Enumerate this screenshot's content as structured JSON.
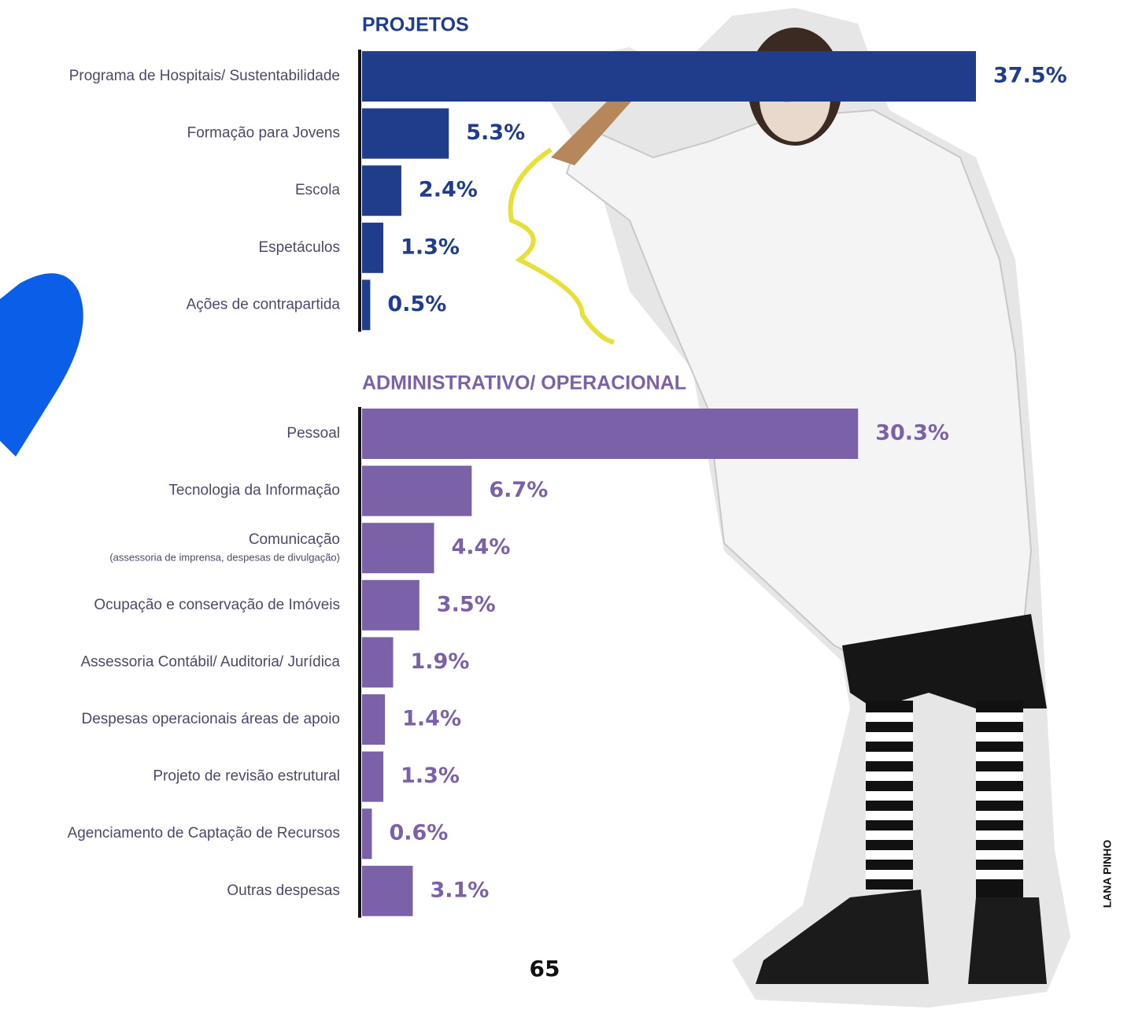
{
  "chart_data": [
    {
      "type": "bar",
      "orientation": "horizontal",
      "title": "PROJETOS",
      "color": "#1f3d8a",
      "categories": [
        "Programa de Hospitais/ Sustentabilidade",
        "Formação para Jovens",
        "Escola",
        "Espetáculos",
        "Ações de contrapartida"
      ],
      "category_details": [
        null,
        null,
        null,
        null,
        null
      ],
      "values": [
        37.5,
        5.3,
        2.4,
        1.3,
        0.5
      ],
      "value_labels": [
        "37.5%",
        "5.3%",
        "2.4%",
        "1.3%",
        "0.5%"
      ]
    },
    {
      "type": "bar",
      "orientation": "horizontal",
      "title": "ADMINISTRATIVO/ OPERACIONAL",
      "color": "#7b62a8",
      "categories": [
        "Pessoal",
        "Tecnologia da Informação",
        "Comunicação",
        "Ocupação e conservação de Imóveis",
        "Assessoria Contábil/ Auditoria/ Jurídica",
        "Despesas operacionais áreas de apoio",
        "Projeto de revisão estrutural",
        "Agenciamento de Captação de Recursos",
        "Outras despesas"
      ],
      "category_details": [
        null,
        null,
        "(assessoria de imprensa, despesas de divulgação)",
        null,
        null,
        null,
        null,
        null,
        null
      ],
      "values": [
        30.3,
        6.7,
        4.4,
        3.5,
        1.9,
        1.4,
        1.3,
        0.6,
        3.1
      ],
      "value_labels": [
        "30.3%",
        "6.7%",
        "4.4%",
        "3.5%",
        "1.9%",
        "1.4%",
        "1.3%",
        "0.6%",
        "3.1%"
      ]
    }
  ],
  "page_number": "65",
  "photo_credit": "LANA PINHO"
}
